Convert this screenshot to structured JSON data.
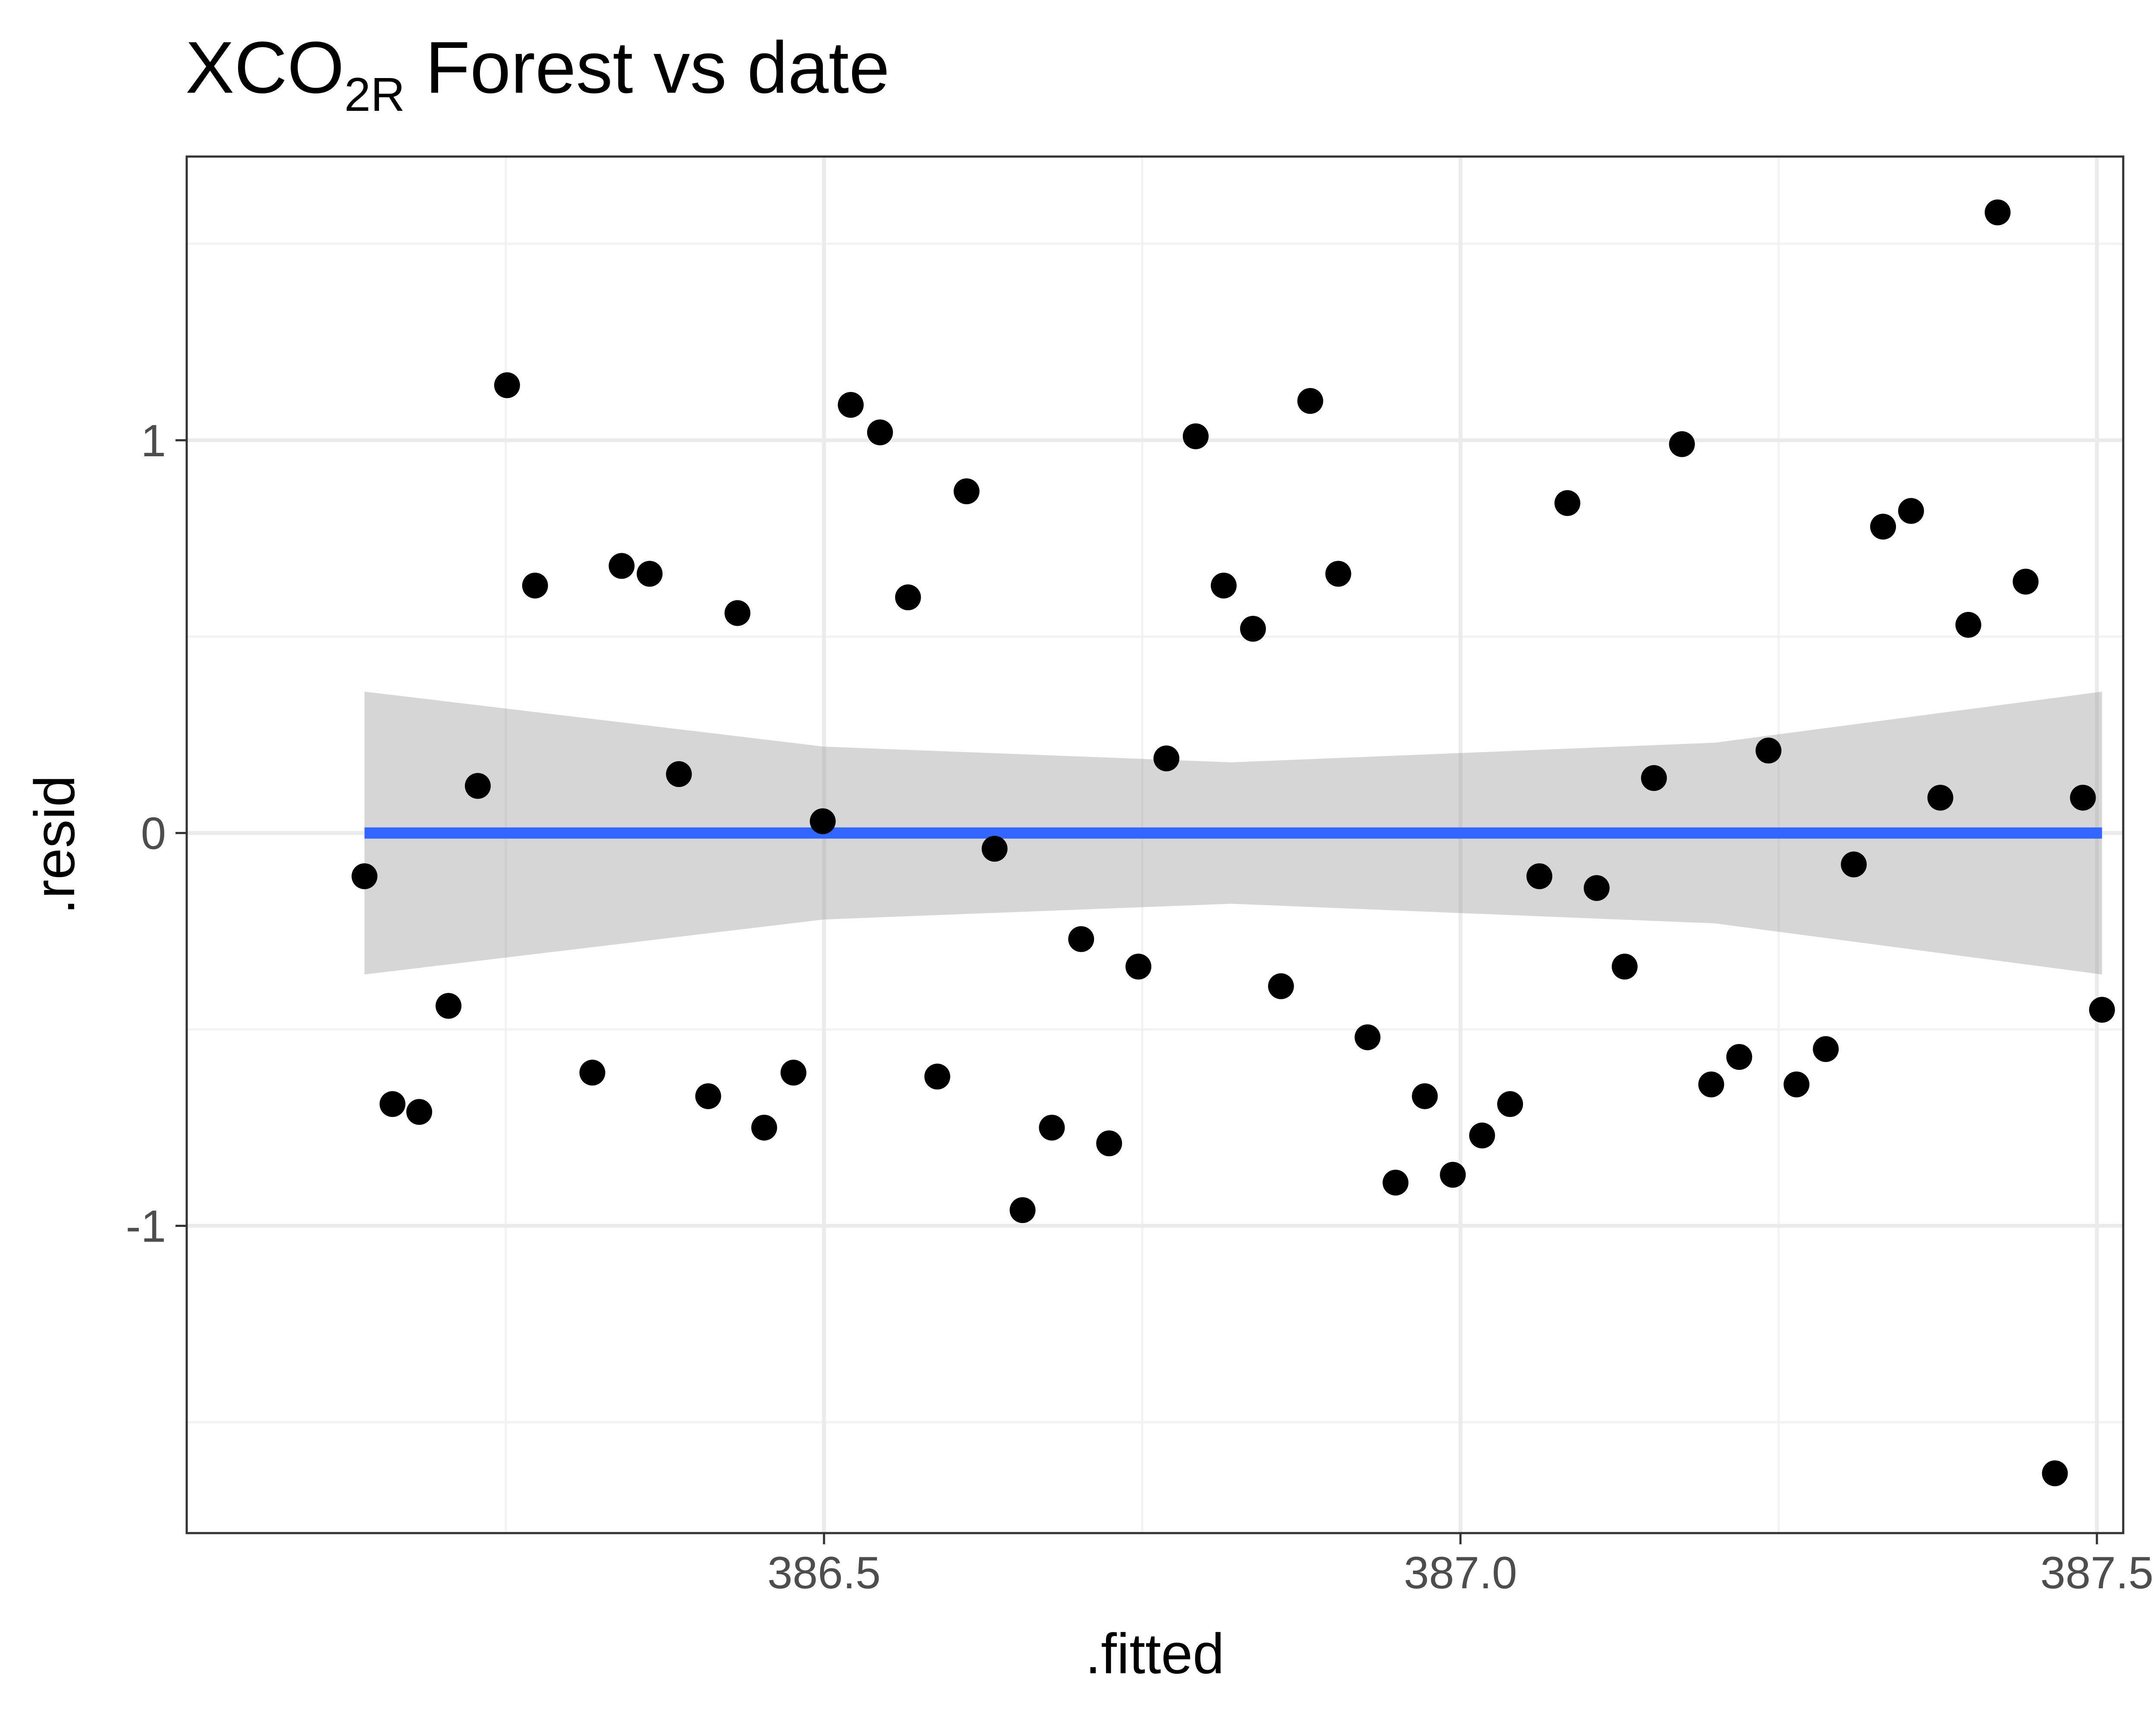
{
  "chart_data": {
    "type": "scatter",
    "title": {
      "main": "XCO",
      "subscript": "2R",
      "rest": " Forest vs date"
    },
    "xlabel": ".fitted",
    "ylabel": ".resid",
    "xlim": [
      386.0,
      387.52
    ],
    "ylim": [
      -1.78,
      1.72
    ],
    "x_ticks": [
      386.5,
      387.0,
      387.5
    ],
    "x_tick_labels": [
      "386.5",
      "387.0",
      "387.5"
    ],
    "y_ticks": [
      -1,
      0,
      1
    ],
    "y_tick_labels": [
      "-1",
      "0",
      "1"
    ],
    "grid": true,
    "points": [
      {
        "x": 386.139,
        "y": -0.11
      },
      {
        "x": 386.161,
        "y": -0.69
      },
      {
        "x": 386.182,
        "y": -0.71
      },
      {
        "x": 386.205,
        "y": -0.44
      },
      {
        "x": 386.228,
        "y": 0.12
      },
      {
        "x": 386.251,
        "y": 1.14
      },
      {
        "x": 386.273,
        "y": 0.63
      },
      {
        "x": 386.318,
        "y": -0.61
      },
      {
        "x": 386.341,
        "y": 0.68
      },
      {
        "x": 386.363,
        "y": 0.66
      },
      {
        "x": 386.386,
        "y": 0.15
      },
      {
        "x": 386.409,
        "y": -0.67
      },
      {
        "x": 386.432,
        "y": 0.56
      },
      {
        "x": 386.453,
        "y": -0.75
      },
      {
        "x": 386.476,
        "y": -0.61
      },
      {
        "x": 386.499,
        "y": 0.03
      },
      {
        "x": 386.521,
        "y": 1.09
      },
      {
        "x": 386.544,
        "y": 1.02
      },
      {
        "x": 386.566,
        "y": 0.6
      },
      {
        "x": 386.589,
        "y": -0.62
      },
      {
        "x": 386.612,
        "y": 0.87
      },
      {
        "x": 386.634,
        "y": -0.04
      },
      {
        "x": 386.656,
        "y": -0.96
      },
      {
        "x": 386.679,
        "y": -0.75
      },
      {
        "x": 386.702,
        "y": -0.27
      },
      {
        "x": 386.724,
        "y": -0.79
      },
      {
        "x": 386.747,
        "y": -0.34
      },
      {
        "x": 386.769,
        "y": 0.19
      },
      {
        "x": 386.792,
        "y": 1.01
      },
      {
        "x": 386.814,
        "y": 0.63
      },
      {
        "x": 386.837,
        "y": 0.52
      },
      {
        "x": 386.859,
        "y": -0.39
      },
      {
        "x": 386.882,
        "y": 1.1
      },
      {
        "x": 386.904,
        "y": 0.66
      },
      {
        "x": 386.927,
        "y": -0.52
      },
      {
        "x": 386.949,
        "y": -0.89
      },
      {
        "x": 386.972,
        "y": -0.67
      },
      {
        "x": 386.994,
        "y": -0.87
      },
      {
        "x": 387.017,
        "y": -0.77
      },
      {
        "x": 387.039,
        "y": -0.69
      },
      {
        "x": 387.062,
        "y": -0.11
      },
      {
        "x": 387.084,
        "y": 0.84
      },
      {
        "x": 387.107,
        "y": -0.14
      },
      {
        "x": 387.129,
        "y": -0.34
      },
      {
        "x": 387.152,
        "y": 0.14
      },
      {
        "x": 387.174,
        "y": 0.99
      },
      {
        "x": 387.197,
        "y": -0.64
      },
      {
        "x": 387.219,
        "y": -0.57
      },
      {
        "x": 387.242,
        "y": 0.21
      },
      {
        "x": 387.264,
        "y": -0.64
      },
      {
        "x": 387.287,
        "y": -0.55
      },
      {
        "x": 387.309,
        "y": -0.08
      },
      {
        "x": 387.332,
        "y": 0.78
      },
      {
        "x": 387.354,
        "y": 0.82
      },
      {
        "x": 387.377,
        "y": 0.09
      },
      {
        "x": 387.399,
        "y": 0.53
      },
      {
        "x": 387.422,
        "y": 1.58
      },
      {
        "x": 387.444,
        "y": 0.64
      },
      {
        "x": 387.467,
        "y": -1.63
      },
      {
        "x": 387.489,
        "y": 0.09
      },
      {
        "x": 387.504,
        "y": -0.45
      }
    ],
    "fit_line": {
      "x": [
        386.139,
        387.504
      ],
      "y": [
        0,
        0
      ]
    },
    "confidence_band": {
      "x": [
        386.139,
        386.5,
        386.82,
        387.2,
        387.504
      ],
      "upper": [
        0.36,
        0.22,
        0.18,
        0.23,
        0.36
      ],
      "lower": [
        -0.36,
        -0.22,
        -0.18,
        -0.23,
        -0.36
      ]
    },
    "colors": {
      "points": "#000000",
      "fit_line": "#3366ff",
      "band": "#999999",
      "grid_major": "#ebebeb",
      "grid_minor": "#f2f2f2",
      "panel_border": "#333333",
      "tick_text": "#4d4d4d"
    }
  }
}
